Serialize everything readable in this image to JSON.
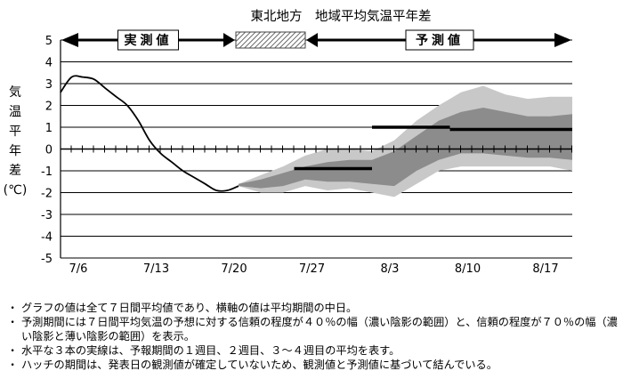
{
  "chart_data": {
    "type": "area",
    "title": "東北地方　地域平均気温平年差",
    "ylabel": "気温平年差（℃）",
    "ylabel_chars": [
      "気",
      "温",
      "平",
      "年",
      "差",
      "(℃)"
    ],
    "ylim": [
      -5,
      5
    ],
    "yticks": [
      5,
      4,
      3,
      2,
      1,
      0,
      -1,
      -2,
      -3,
      -4,
      -5
    ],
    "ytick_labels": [
      "5",
      "4",
      "3",
      "2",
      "1",
      "0",
      "-1",
      "-2",
      "-3",
      "-4",
      "-5"
    ],
    "xlim": [
      0,
      46
    ],
    "xticks": [
      0,
      7,
      14,
      21,
      28,
      35,
      42
    ],
    "xtick_labels": [
      "7/6",
      "7/13",
      "7/20",
      "7/27",
      "8/3",
      "8/10",
      "8/17"
    ],
    "period_labels": {
      "observed": "実測値",
      "forecast": "予測値"
    },
    "observed": {
      "x": [
        0,
        1,
        2,
        3,
        4,
        5,
        6,
        7,
        8,
        9,
        10,
        11,
        12,
        13,
        14,
        15,
        16
      ],
      "y": [
        2.6,
        3.3,
        3.3,
        3.2,
        2.8,
        2.4,
        2.0,
        1.3,
        0.4,
        -0.2,
        -0.6,
        -1.0,
        -1.3,
        -1.6,
        -1.9,
        -1.9,
        -1.7
      ]
    },
    "band_70": {
      "x": [
        16,
        18,
        20,
        22,
        24,
        26,
        28,
        30,
        32,
        34,
        36,
        38,
        40,
        42,
        44,
        46
      ],
      "upper": [
        -1.6,
        -1.2,
        -0.8,
        -0.3,
        0.0,
        0.0,
        -0.1,
        0.4,
        1.3,
        2.0,
        2.6,
        2.9,
        2.5,
        2.3,
        2.4,
        2.4
      ],
      "lower": [
        -1.7,
        -2.0,
        -2.0,
        -1.7,
        -1.9,
        -1.8,
        -2.0,
        -2.2,
        -1.6,
        -1.0,
        -0.8,
        -0.8,
        -0.8,
        -0.8,
        -0.8,
        -1.0
      ]
    },
    "band_40": {
      "x": [
        16,
        18,
        20,
        22,
        24,
        26,
        28,
        30,
        32,
        34,
        36,
        38,
        40,
        42,
        44,
        46
      ],
      "upper": [
        -1.6,
        -1.4,
        -1.1,
        -0.8,
        -0.6,
        -0.5,
        -0.5,
        -0.1,
        0.6,
        1.3,
        1.7,
        1.9,
        1.7,
        1.5,
        1.5,
        1.6
      ],
      "lower": [
        -1.7,
        -1.8,
        -1.7,
        -1.4,
        -1.5,
        -1.5,
        -1.6,
        -1.7,
        -1.0,
        -0.5,
        -0.2,
        -0.2,
        -0.3,
        -0.4,
        -0.4,
        -0.5
      ]
    },
    "weekly_means": [
      {
        "x": [
          21,
          28
        ],
        "y": -0.9
      },
      {
        "x": [
          28,
          35
        ],
        "y": 1.0
      },
      {
        "x": [
          35,
          46
        ],
        "y": 0.9
      }
    ],
    "hatch_x": [
      16,
      22
    ],
    "colors": {
      "band_70": "#c8c8c8",
      "band_40": "#8c8c8c",
      "line": "#000000",
      "grid": "#000000"
    }
  },
  "notes": [
    "グラフの値は全て７日間平均値であり、横軸の値は平均期間の中日。",
    "予測期間には７日間平均気温の予想に対する信頼の程度が４０％の幅（濃い陰影の範囲）と、信頼の程度が７０％の幅（濃い陰影と薄い陰影の範囲）を表示。",
    "水平な３本の実線は、予報期間の１週目、２週目、３～４週目の平均を表す。",
    "ハッチの期間は、発表日の観測値が確定していないため、観測値と予測値に基づいて結んでいる。"
  ],
  "bullet": "・"
}
